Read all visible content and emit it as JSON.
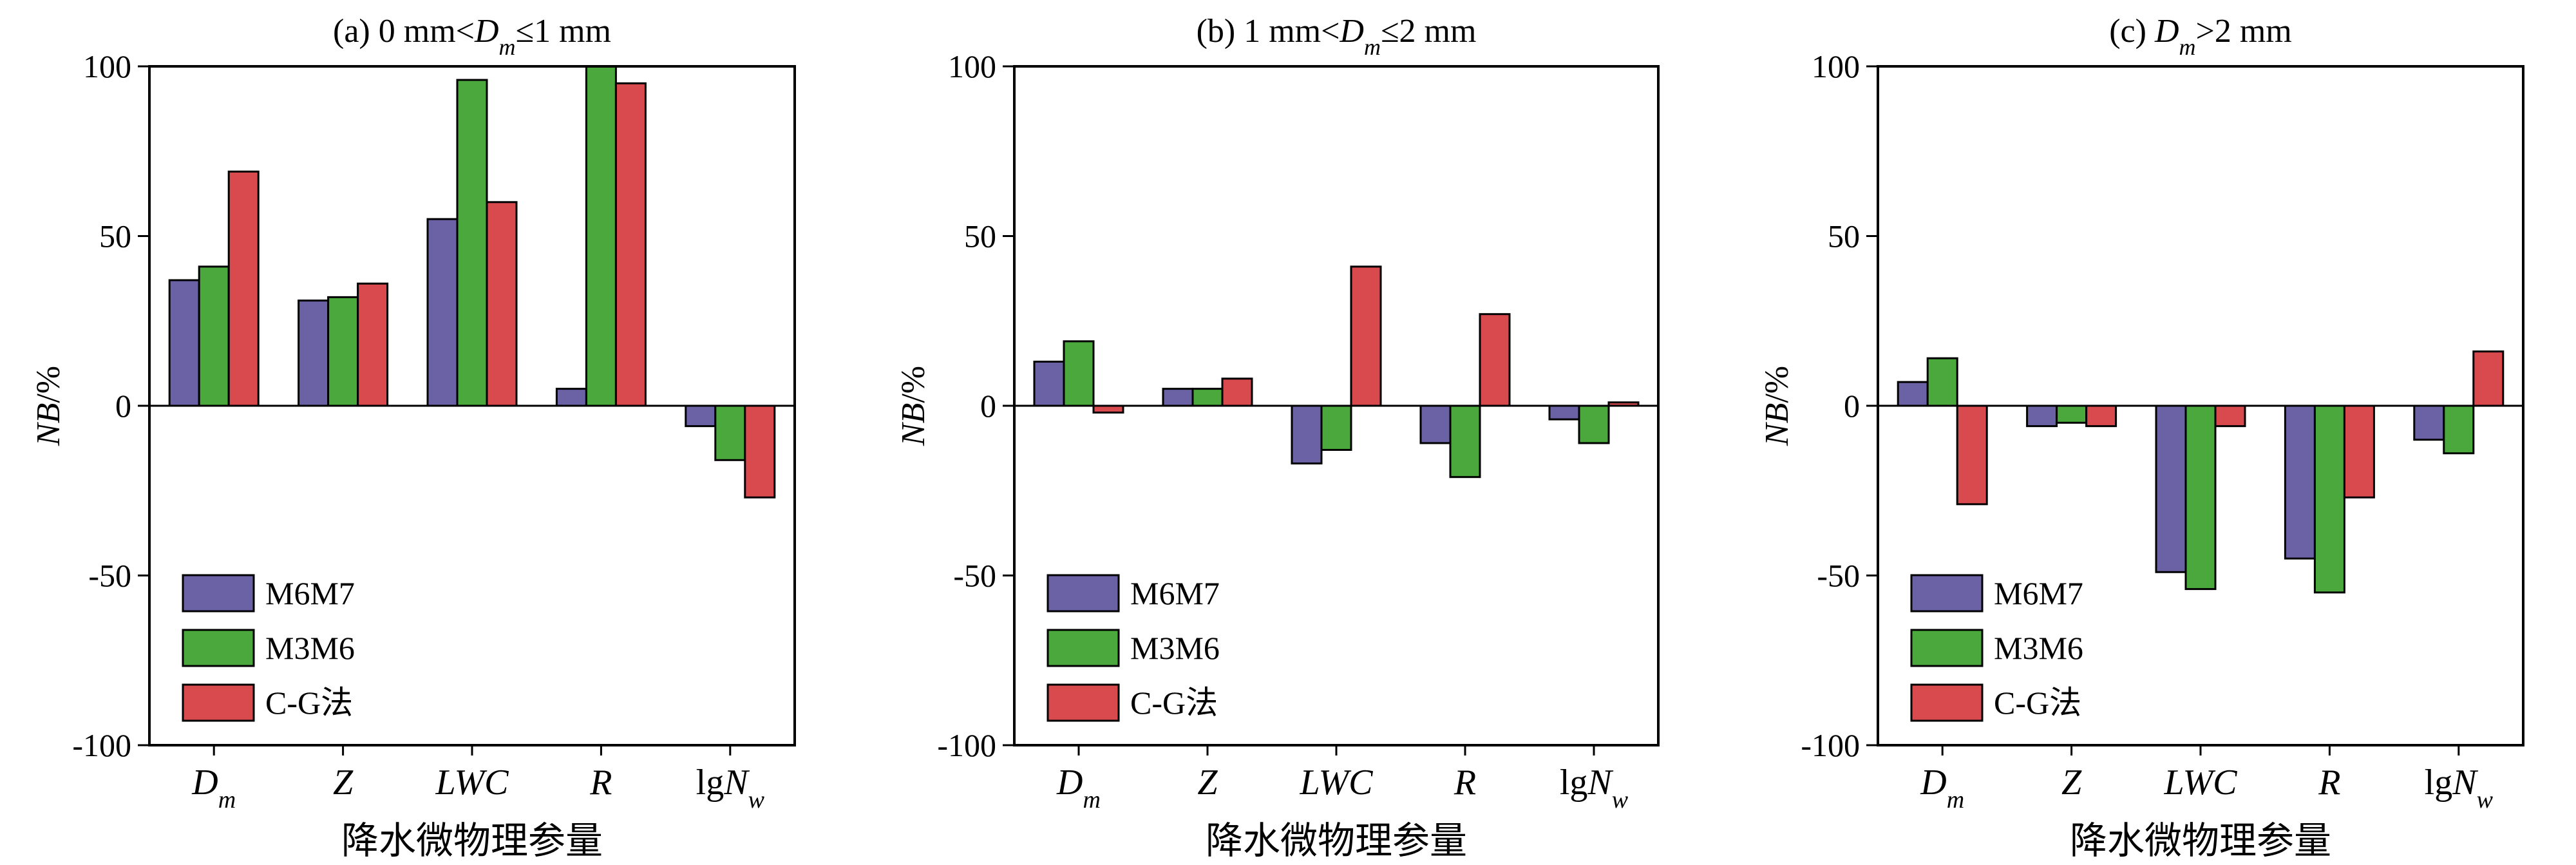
{
  "chart_data": [
    {
      "type": "bar",
      "title": "(a) 0 mm<Dm≤1 mm",
      "title_parts": [
        "(a) 0 mm<",
        "D",
        "m",
        "≤1 mm"
      ],
      "xlabel": "降水微物理参量",
      "ylabel": "NB/%",
      "ylabel_parts": [
        "NB",
        "/%"
      ],
      "ylim": [
        -100,
        100
      ],
      "yticks": [
        100,
        50,
        0,
        -50,
        -100
      ],
      "categories": [
        "Dm",
        "Z",
        "LWC",
        "R",
        "lgNw"
      ],
      "category_parts": [
        [
          "",
          "D",
          "m"
        ],
        [
          "",
          "Z",
          ""
        ],
        [
          "",
          "LWC",
          ""
        ],
        [
          "",
          "R",
          ""
        ],
        [
          "lg",
          "N",
          "w"
        ]
      ],
      "series": [
        {
          "name": "M6M7",
          "values": [
            37,
            31,
            55,
            5,
            -6
          ]
        },
        {
          "name": "M3M6",
          "values": [
            41,
            32,
            96,
            100,
            -16
          ]
        },
        {
          "name": "C-G法",
          "values": [
            69,
            36,
            60,
            95,
            -27
          ]
        }
      ],
      "legend": "lower-left"
    },
    {
      "type": "bar",
      "title": "(b) 1 mm<Dm≤2 mm",
      "title_parts": [
        "(b) 1 mm<",
        "D",
        "m",
        "≤2 mm"
      ],
      "xlabel": "降水微物理参量",
      "ylabel": "NB/%",
      "ylabel_parts": [
        "NB",
        "/%"
      ],
      "ylim": [
        -100,
        100
      ],
      "yticks": [
        100,
        50,
        0,
        -50,
        -100
      ],
      "categories": [
        "Dm",
        "Z",
        "LWC",
        "R",
        "lgNw"
      ],
      "category_parts": [
        [
          "",
          "D",
          "m"
        ],
        [
          "",
          "Z",
          ""
        ],
        [
          "",
          "LWC",
          ""
        ],
        [
          "",
          "R",
          ""
        ],
        [
          "lg",
          "N",
          "w"
        ]
      ],
      "series": [
        {
          "name": "M6M7",
          "values": [
            13,
            5,
            -17,
            -11,
            -4
          ]
        },
        {
          "name": "M3M6",
          "values": [
            19,
            5,
            -13,
            -21,
            -11
          ]
        },
        {
          "name": "C-G法",
          "values": [
            -2,
            8,
            41,
            27,
            1
          ]
        }
      ],
      "legend": "lower-left"
    },
    {
      "type": "bar",
      "title": "(c) Dm>2 mm",
      "title_parts": [
        "(c) ",
        "D",
        "m",
        ">2 mm"
      ],
      "xlabel": "降水微物理参量",
      "ylabel": "NB/%",
      "ylabel_parts": [
        "NB",
        "/%"
      ],
      "ylim": [
        -100,
        100
      ],
      "yticks": [
        100,
        50,
        0,
        -50,
        -100
      ],
      "categories": [
        "Dm",
        "Z",
        "LWC",
        "R",
        "lgNw"
      ],
      "category_parts": [
        [
          "",
          "D",
          "m"
        ],
        [
          "",
          "Z",
          ""
        ],
        [
          "",
          "LWC",
          ""
        ],
        [
          "",
          "R",
          ""
        ],
        [
          "lg",
          "N",
          "w"
        ]
      ],
      "series": [
        {
          "name": "M6M7",
          "values": [
            7,
            -6,
            -49,
            -45,
            -10
          ]
        },
        {
          "name": "M3M6",
          "values": [
            14,
            -5,
            -54,
            -55,
            -14
          ]
        },
        {
          "name": "C-G法",
          "values": [
            -29,
            -6,
            -6,
            -27,
            16
          ]
        }
      ],
      "legend": "lower-left"
    }
  ],
  "colors": {
    "M6M7": "#6b62a6",
    "M3M6": "#4aa83c",
    "C-G法": "#d94a4e"
  }
}
